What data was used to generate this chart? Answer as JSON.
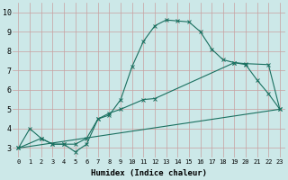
{
  "xlabel": "Humidex (Indice chaleur)",
  "bg_color": "#cce8e8",
  "grid_color": "#c8a0a0",
  "line_color": "#1a7060",
  "xlim": [
    -0.5,
    23.5
  ],
  "ylim": [
    2.5,
    10.5
  ],
  "xticks": [
    0,
    1,
    2,
    3,
    4,
    5,
    6,
    7,
    8,
    9,
    10,
    11,
    12,
    13,
    14,
    15,
    16,
    17,
    18,
    19,
    20,
    21,
    22,
    23
  ],
  "yticks": [
    3,
    4,
    5,
    6,
    7,
    8,
    9,
    10
  ],
  "curve1_x": [
    0,
    1,
    2,
    3,
    4,
    5,
    6,
    7,
    8,
    9,
    10,
    11,
    12,
    13,
    14,
    15,
    16,
    17,
    18,
    19,
    20,
    21,
    22,
    23
  ],
  "curve1_y": [
    3.0,
    4.0,
    3.5,
    3.2,
    3.2,
    2.8,
    3.2,
    4.5,
    4.7,
    5.5,
    7.2,
    8.5,
    9.3,
    9.6,
    9.55,
    9.5,
    9.0,
    8.1,
    7.55,
    7.4,
    7.3,
    6.5,
    5.8,
    5.0
  ],
  "curve2_x": [
    0,
    2,
    3,
    4,
    5,
    6,
    7,
    8,
    9,
    11,
    12,
    19,
    20,
    22,
    23
  ],
  "curve2_y": [
    3.0,
    3.5,
    3.2,
    3.2,
    3.2,
    3.5,
    4.5,
    4.8,
    5.0,
    5.5,
    5.55,
    7.4,
    7.35,
    7.3,
    5.0
  ],
  "curve3_x": [
    0,
    23
  ],
  "curve3_y": [
    3.0,
    5.0
  ],
  "xtick_fontsize": 5.0,
  "ytick_fontsize": 6.0,
  "xlabel_fontsize": 6.5
}
